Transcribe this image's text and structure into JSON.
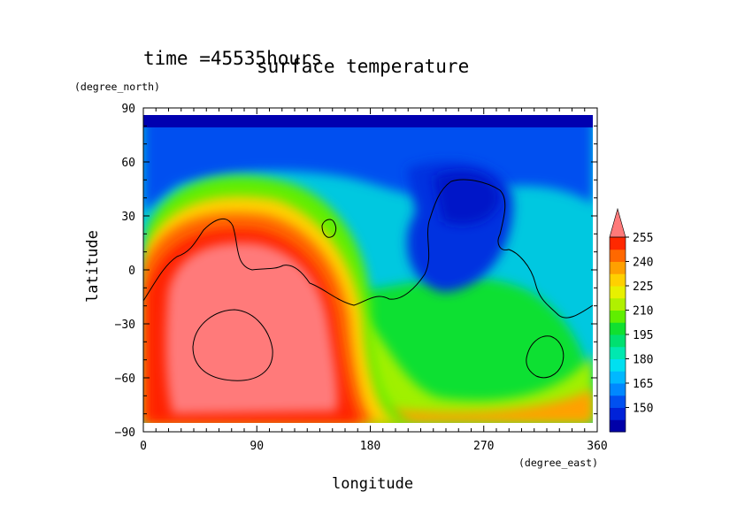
{
  "chart_data": {
    "type": "heatmap",
    "title": "surface temperature",
    "time_label": "time =45535hours",
    "xlabel": "longitude",
    "ylabel": "latitude",
    "xunit": "(degree_east)",
    "yunit": "(degree_north)",
    "xlim": [
      0,
      360
    ],
    "ylim": [
      -90,
      90
    ],
    "xticks": [
      0,
      90,
      180,
      270,
      360
    ],
    "yticks": [
      90,
      60,
      30,
      0,
      -30,
      -60,
      -90
    ],
    "colorbar": {
      "levels": [
        135,
        142.5,
        150,
        157.5,
        165,
        172.5,
        180,
        187.5,
        195,
        202.5,
        210,
        217.5,
        225,
        232.5,
        240,
        247.5,
        255,
        262.5
      ],
      "labels": [
        150,
        165,
        180,
        195,
        210,
        225,
        240,
        255
      ],
      "colors": [
        "#0000a8",
        "#0022d8",
        "#0050f0",
        "#0088ff",
        "#00b8ff",
        "#00e0f0",
        "#00e8b0",
        "#00e070",
        "#10e030",
        "#60ee00",
        "#b0f000",
        "#e8f000",
        "#ffd000",
        "#ffa000",
        "#ff6800",
        "#ff2800",
        "#ff7a7a"
      ],
      "extend": "max"
    },
    "field_description_points": {
      "hot_region_center": [
        90,
        -30,
        262
      ],
      "cold_region_center": [
        260,
        40,
        150
      ],
      "north_polar_band": [
        180,
        80,
        150
      ]
    }
  }
}
